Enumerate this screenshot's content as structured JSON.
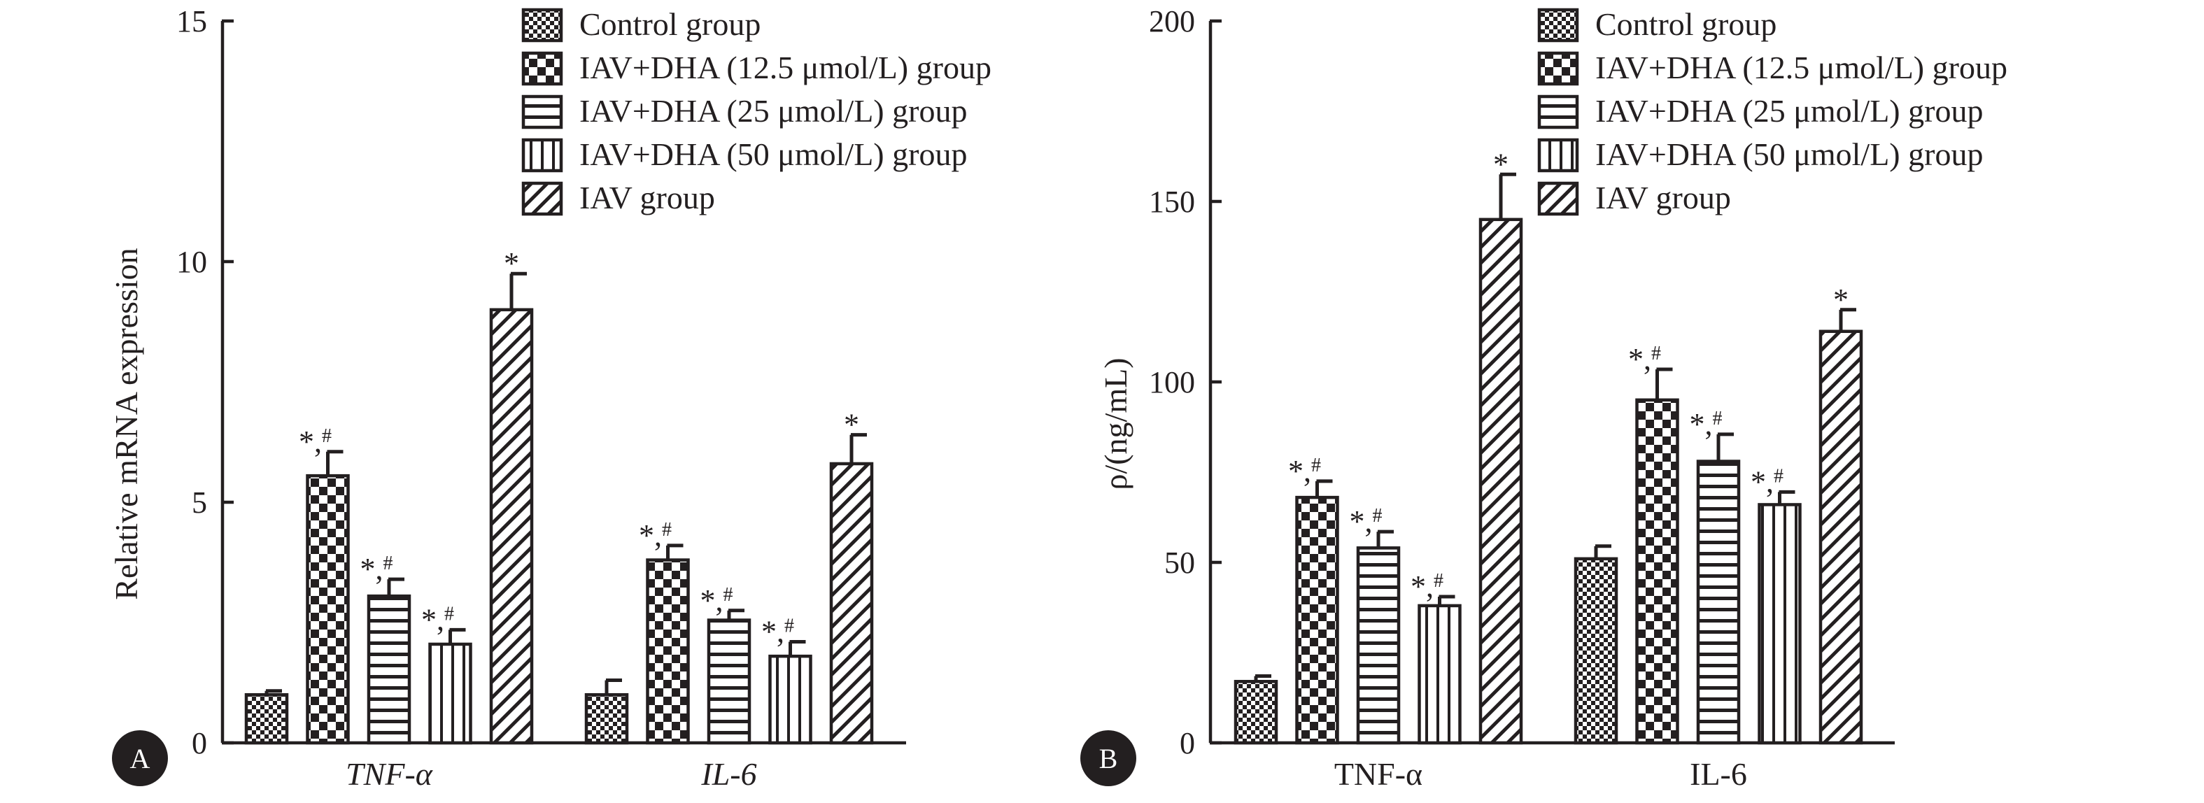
{
  "figure": {
    "panels": [
      {
        "letter": "A",
        "ylabel": "Relative mRNA expression",
        "categories": [
          "TNF-α",
          "IL-6"
        ]
      },
      {
        "letter": "B",
        "ylabel": "ρ/(ng/mL)",
        "categories": [
          "TNF-α",
          "IL-6"
        ]
      }
    ]
  },
  "legend": [
    {
      "name": "Control group",
      "pattern": "fine-checker"
    },
    {
      "name": "IAV+DHA (12.5 μmol/L) group",
      "pattern": "checker"
    },
    {
      "name": "IAV+DHA (25 μmol/L) group",
      "pattern": "horizontal-stripes"
    },
    {
      "name": "IAV+DHA (50 μmol/L) group",
      "pattern": "vertical-stripes"
    },
    {
      "name": "IAV group",
      "pattern": "diagonal-stripes"
    }
  ],
  "chart_data": [
    {
      "type": "bar",
      "panel": "A",
      "title": "",
      "xlabel": "",
      "ylabel": "Relative mRNA expression",
      "ylim": [
        0,
        15
      ],
      "yticks": [
        0,
        5,
        10,
        15
      ],
      "categories": [
        "TNF-α",
        "IL-6"
      ],
      "category_style": "italic",
      "grid": false,
      "legend_position": "top-right",
      "series": [
        {
          "name": "Control group",
          "values": [
            1.0,
            1.0
          ],
          "errors": [
            0.08,
            0.3
          ],
          "labels": [
            "",
            ""
          ]
        },
        {
          "name": "IAV+DHA (12.5 μmol/L) group",
          "values": [
            5.55,
            3.8
          ],
          "errors": [
            0.5,
            0.3
          ],
          "labels": [
            "*,#",
            "*,#"
          ]
        },
        {
          "name": "IAV+DHA (25 μmol/L) group",
          "values": [
            3.05,
            2.55
          ],
          "errors": [
            0.35,
            0.2
          ],
          "labels": [
            "*,#",
            "*,#"
          ]
        },
        {
          "name": "IAV+DHA (50 μmol/L) group",
          "values": [
            2.05,
            1.8
          ],
          "errors": [
            0.3,
            0.3
          ],
          "labels": [
            "*,#",
            "*,#"
          ]
        },
        {
          "name": "IAV group",
          "values": [
            9.0,
            5.8
          ],
          "errors": [
            0.75,
            0.6
          ],
          "labels": [
            "*",
            "*"
          ]
        }
      ]
    },
    {
      "type": "bar",
      "panel": "B",
      "title": "",
      "xlabel": "",
      "ylabel": "ρ/(ng/mL)",
      "ylim": [
        0,
        200
      ],
      "yticks": [
        0,
        50,
        100,
        150,
        200
      ],
      "categories": [
        "TNF-α",
        "IL-6"
      ],
      "category_style": "normal",
      "grid": false,
      "legend_position": "top-right",
      "series": [
        {
          "name": "Control group",
          "values": [
            17,
            51
          ],
          "errors": [
            1.5,
            3.5
          ],
          "labels": [
            "",
            ""
          ]
        },
        {
          "name": "IAV+DHA (12.5 μmol/L) group",
          "values": [
            68,
            95
          ],
          "errors": [
            4.5,
            8.5
          ],
          "labels": [
            "*,#",
            "*,#"
          ]
        },
        {
          "name": "IAV+DHA (25 μmol/L) group",
          "values": [
            54,
            78
          ],
          "errors": [
            4.5,
            7.5
          ],
          "labels": [
            "*,#",
            "*,#"
          ]
        },
        {
          "name": "IAV+DHA (50 μmol/L) group",
          "values": [
            38,
            66
          ],
          "errors": [
            2.5,
            3.5
          ],
          "labels": [
            "*,#",
            "*,#"
          ]
        },
        {
          "name": "IAV group",
          "values": [
            145,
            114
          ],
          "errors": [
            12.5,
            6
          ],
          "labels": [
            "*",
            "*"
          ]
        }
      ]
    }
  ]
}
